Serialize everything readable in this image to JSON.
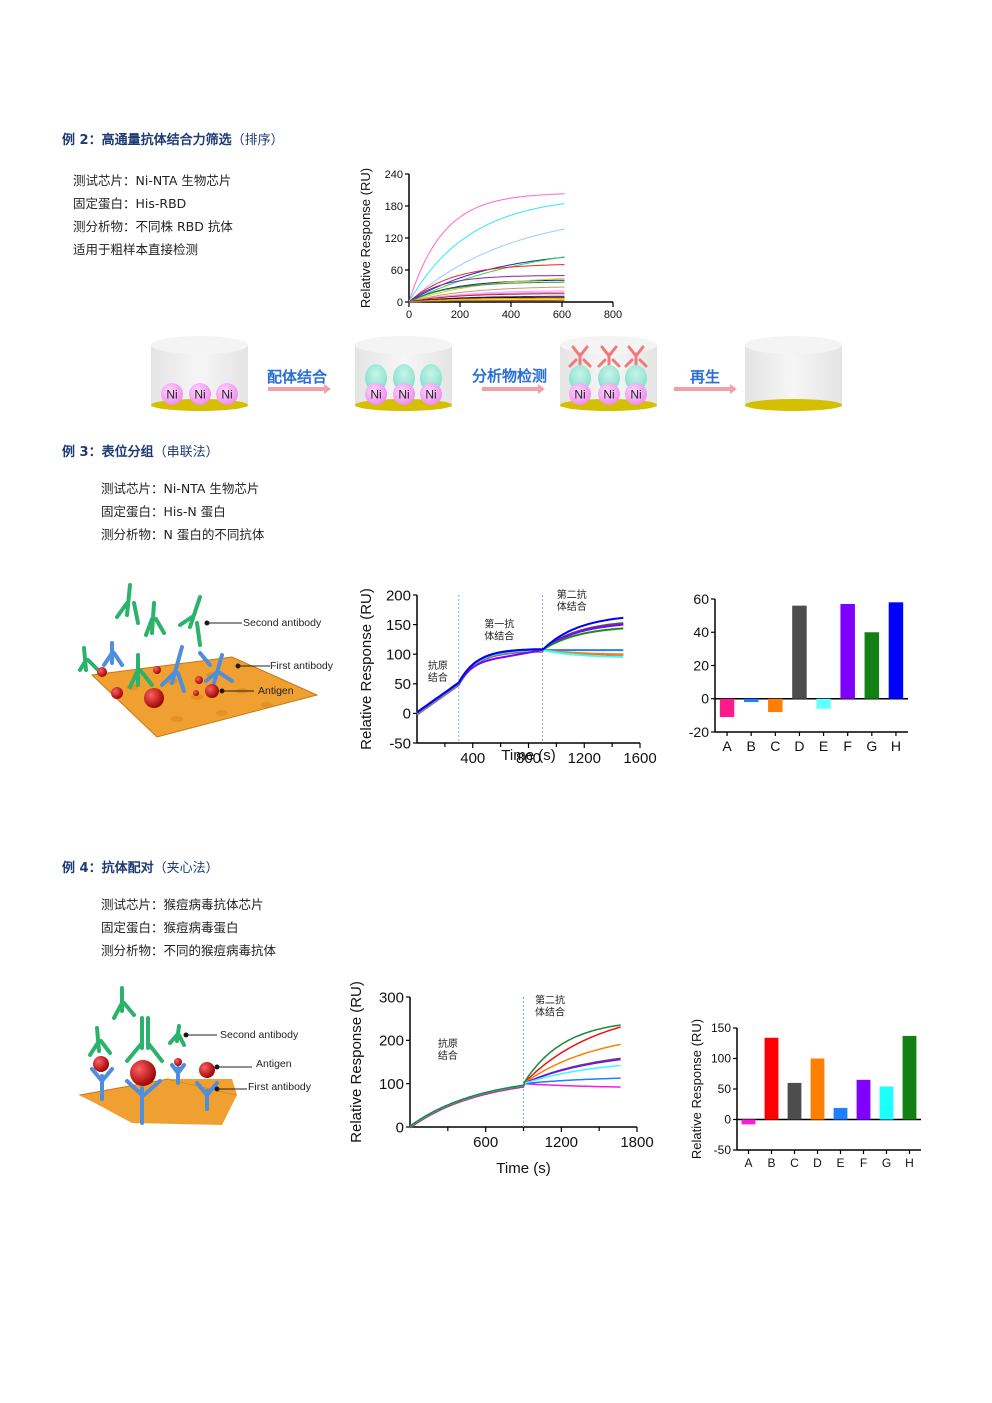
{
  "example2": {
    "title_prefix": "例 2：",
    "title_main": "高通量抗体结合力筛选",
    "title_sub": "（排序）",
    "info": [
      "测试芯片：Ni-NTA 生物芯片",
      "固定蛋白：His-RBD",
      "测分析物：不同株 RBD 抗体",
      "适用于粗样本直接检测"
    ]
  },
  "workflow": {
    "steps": [
      "配体结合",
      "分析物检测",
      "再生"
    ],
    "ni_label": "Ni"
  },
  "example3": {
    "title_prefix": "例 3：",
    "title_main": "表位分组",
    "title_sub": "（串联法）",
    "info": [
      "测试芯片：Ni-NTA 生物芯片",
      "固定蛋白：His-N 蛋白",
      "测分析物：N 蛋白的不同抗体"
    ],
    "illustration_labels": [
      "Second antibody",
      "First antibody",
      "Antigen"
    ]
  },
  "example4": {
    "title_prefix": "例 4：",
    "title_main": "抗体配对",
    "title_sub": "（夹心法）",
    "info": [
      "测试芯片：猴痘病毒抗体芯片",
      "固定蛋白：猴痘病毒蛋白",
      "测分析物：不同的猴痘病毒抗体"
    ],
    "illustration_labels": [
      "Second antibody",
      "Antigen",
      "First antibody"
    ]
  },
  "chart_data": [
    {
      "id": "ex2-kinetics",
      "type": "line",
      "title": "",
      "xlabel": "",
      "ylabel": "Relative Response (RU)",
      "xlim": [
        0,
        800
      ],
      "ylim": [
        0,
        240
      ],
      "xticks": [
        0,
        200,
        400,
        600,
        800
      ],
      "yticks": [
        0,
        60,
        120,
        180,
        240
      ],
      "x_end": 610,
      "series": [
        {
          "color": "#ff66cc",
          "plateau": 205,
          "k": 0.0075
        },
        {
          "color": "#33e6ff",
          "plateau": 200,
          "k": 0.0042
        },
        {
          "color": "#99ccff",
          "plateau": 175,
          "k": 0.0025
        },
        {
          "color": "#2222dd",
          "plateau": 100,
          "k": 0.003
        },
        {
          "color": "#33dd33",
          "plateau": 120,
          "k": 0.002
        },
        {
          "color": "#ee2222",
          "plateau": 72,
          "k": 0.006
        },
        {
          "color": "#8822aa",
          "plateau": 50,
          "k": 0.008
        },
        {
          "color": "#222266",
          "plateau": 42,
          "k": 0.006
        },
        {
          "color": "#cccc33",
          "plateau": 50,
          "k": 0.0035
        },
        {
          "color": "#229944",
          "plateau": 38,
          "k": 0.0065
        },
        {
          "color": "#cc9966",
          "plateau": 30,
          "k": 0.0045
        },
        {
          "color": "#ff99ff",
          "plateau": 22,
          "k": 0.005
        },
        {
          "color": "#cc88ff",
          "plateau": 19,
          "k": 0.005
        },
        {
          "color": "#cc2222",
          "plateau": 16,
          "k": 0.006
        },
        {
          "color": "#333399",
          "plateau": 11,
          "k": 0.006
        },
        {
          "color": "#111111",
          "plateau": 9,
          "k": 0.007
        },
        {
          "color": "#ff9900",
          "plateau": 7,
          "k": 0.006
        },
        {
          "color": "#ffdd00",
          "plateau": 5,
          "k": 0.006
        },
        {
          "color": "#996633",
          "plateau": 3,
          "k": 0.006
        }
      ]
    },
    {
      "id": "ex3-sensorgram",
      "type": "line",
      "title": "",
      "xlabel": "Time (s)",
      "ylabel": "Relative Response (RU)",
      "xlim": [
        0,
        1600
      ],
      "ylim": [
        -50,
        200
      ],
      "xticks": [
        400,
        800,
        1200,
        1600
      ],
      "yticks": [
        -50,
        0,
        50,
        100,
        150,
        200
      ],
      "phase_lines": [
        300,
        900
      ],
      "annotations": [
        {
          "text": [
            "抗原",
            "结合"
          ],
          "x": 150,
          "y": 75
        },
        {
          "text": [
            "第一抗",
            "体结合"
          ],
          "x": 590,
          "y": 145
        },
        {
          "text": [
            "第二抗",
            "体结合"
          ],
          "x": 1110,
          "y": 195
        }
      ],
      "series": [
        {
          "name": "A",
          "color": "#ff1a75",
          "final": 98
        },
        {
          "name": "B",
          "color": "#1f7fff",
          "final": 107
        },
        {
          "name": "C",
          "color": "#ff8000",
          "final": 99
        },
        {
          "name": "D",
          "color": "#555555",
          "final": 158
        },
        {
          "name": "E",
          "color": "#33ffff",
          "final": 94
        },
        {
          "name": "F",
          "color": "#8000ff",
          "final": 155
        },
        {
          "name": "G",
          "color": "#1a8a1a",
          "final": 148
        },
        {
          "name": "H",
          "color": "#0000ff",
          "final": 168
        }
      ]
    },
    {
      "id": "ex3-bar",
      "type": "bar",
      "title": "",
      "xlabel": "",
      "ylabel": "",
      "categories": [
        "A",
        "B",
        "C",
        "D",
        "E",
        "F",
        "G",
        "H"
      ],
      "values": [
        -11,
        -2,
        -8,
        56,
        -6,
        57,
        40,
        58
      ],
      "colors": [
        "#ff1a8c",
        "#1f7fff",
        "#ff8000",
        "#4d4d4d",
        "#66ffff",
        "#8000ff",
        "#138013",
        "#0000ff"
      ],
      "ylim": [
        -20,
        60
      ],
      "yticks": [
        -20,
        0,
        20,
        40,
        60
      ]
    },
    {
      "id": "ex4-sensorgram",
      "type": "line",
      "title": "",
      "xlabel": "Time (s)",
      "ylabel": "Relative Response (RU)",
      "xlim": [
        0,
        1800
      ],
      "ylim": [
        0,
        300
      ],
      "xticks": [
        600,
        1200,
        1800
      ],
      "yticks": [
        0,
        100,
        200,
        300
      ],
      "phase_lines": [
        900
      ],
      "annotations": [
        {
          "text": [
            "抗原",
            "结合"
          ],
          "x": 300,
          "y": 185
        },
        {
          "text": [
            "第二抗",
            "体结合"
          ],
          "x": 1110,
          "y": 285
        }
      ],
      "series": [
        {
          "name": "A",
          "color": "#ff1ad9",
          "final": 92
        },
        {
          "name": "B",
          "color": "#ee1111",
          "final": 234
        },
        {
          "name": "C",
          "color": "#555555",
          "final": 160
        },
        {
          "name": "D",
          "color": "#ff8000",
          "final": 193
        },
        {
          "name": "E",
          "color": "#1f7fff",
          "final": 113
        },
        {
          "name": "F",
          "color": "#8000ff",
          "final": 157
        },
        {
          "name": "G",
          "color": "#33ffff",
          "final": 143
        },
        {
          "name": "H",
          "color": "#1a8a3a",
          "final": 237
        }
      ]
    },
    {
      "id": "ex4-bar",
      "type": "bar",
      "title": "",
      "xlabel": "",
      "ylabel": "Relative Response (RU)",
      "categories": [
        "A",
        "B",
        "C",
        "D",
        "E",
        "F",
        "G",
        "H"
      ],
      "values": [
        -8,
        134,
        60,
        100,
        19,
        65,
        54,
        137
      ],
      "colors": [
        "#ff1ad9",
        "#ff0000",
        "#4d4d4d",
        "#ff8000",
        "#1f7fff",
        "#8000ff",
        "#1affff",
        "#138013"
      ],
      "ylim": [
        -50,
        150
      ],
      "yticks": [
        -50,
        0,
        50,
        100,
        150
      ]
    }
  ]
}
